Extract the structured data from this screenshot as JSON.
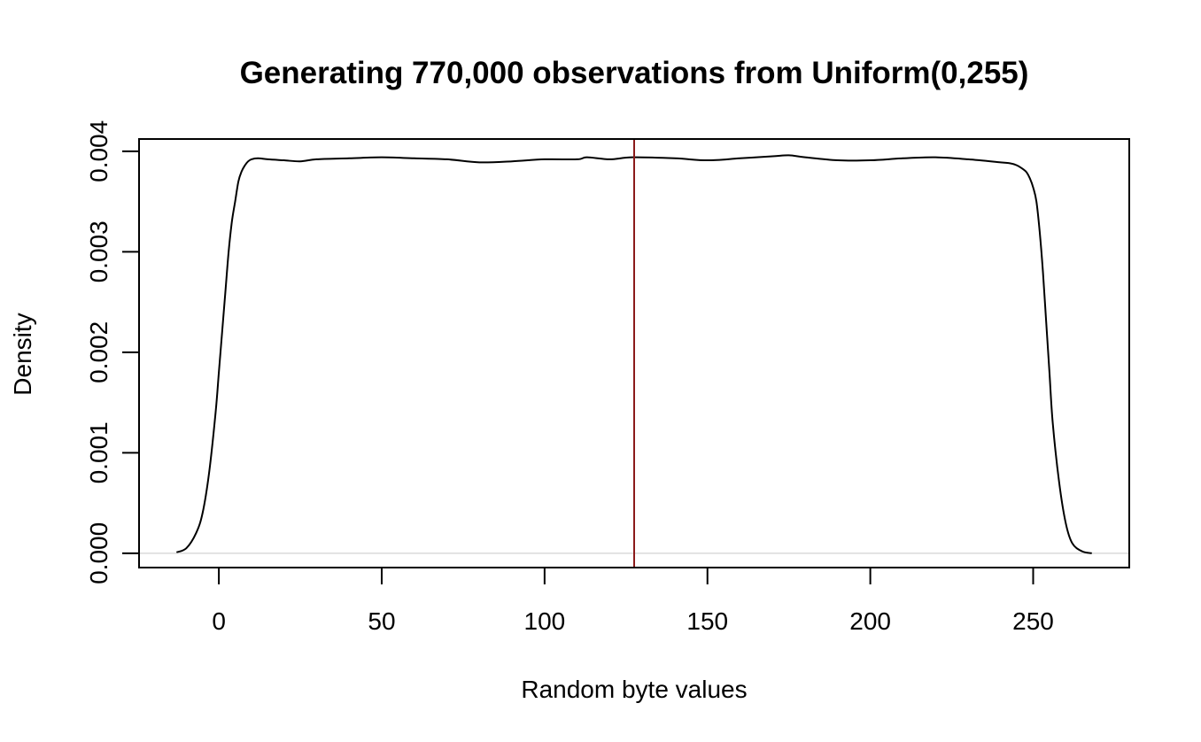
{
  "chart_data": {
    "type": "line",
    "title": "Generating 770,000 observations from Uniform(0,255)",
    "xlabel": "Random byte values",
    "ylabel": "Density",
    "xlim": [
      -24.5,
      279.5
    ],
    "ylim": [
      -0.000142,
      0.004122
    ],
    "x_ticks": [
      0,
      50,
      100,
      150,
      200,
      250
    ],
    "x_tick_labels": [
      "0",
      "50",
      "100",
      "150",
      "200",
      "250"
    ],
    "y_ticks": [
      0,
      0.001,
      0.002,
      0.003,
      0.004
    ],
    "y_tick_labels": [
      "0.000",
      "0.001",
      "0.002",
      "0.003",
      "0.004"
    ],
    "grid": false,
    "baseline": {
      "y": 0,
      "color": "#d3d3d3"
    },
    "vline": {
      "x": 127.5,
      "color": "#8b1a1a"
    },
    "series": [
      {
        "color": "#000000",
        "x": [
          -13,
          -10,
          -7,
          -5,
          -3,
          -1,
          0,
          1,
          2,
          3,
          4,
          5,
          6,
          7,
          8,
          9,
          10,
          12,
          15,
          20,
          25,
          30,
          40,
          50,
          60,
          70,
          80,
          90,
          100,
          110,
          113,
          120,
          127,
          140,
          150,
          160,
          170,
          175,
          180,
          190,
          200,
          210,
          220,
          230,
          240,
          243,
          245,
          247,
          248,
          249,
          250,
          251,
          252,
          253,
          254,
          255,
          256,
          258,
          260,
          262,
          265,
          268
        ],
        "y": [
          1e-05,
          5e-05,
          0.0002,
          0.0004,
          0.0008,
          0.0014,
          0.0018,
          0.0022,
          0.0026,
          0.003,
          0.0033,
          0.0035,
          0.0037,
          0.0038,
          0.00386,
          0.0039,
          0.00392,
          0.00393,
          0.00392,
          0.00391,
          0.0039,
          0.00392,
          0.00393,
          0.00394,
          0.00393,
          0.00392,
          0.00389,
          0.0039,
          0.00392,
          0.00392,
          0.00394,
          0.00392,
          0.00394,
          0.00393,
          0.00391,
          0.00393,
          0.00395,
          0.00396,
          0.00394,
          0.00391,
          0.00391,
          0.00393,
          0.00394,
          0.00392,
          0.00389,
          0.00388,
          0.00386,
          0.00382,
          0.00379,
          0.00373,
          0.00364,
          0.0035,
          0.0032,
          0.0028,
          0.0023,
          0.0018,
          0.0013,
          0.0007,
          0.0003,
          0.0001,
          2e-05,
          0.0
        ]
      }
    ]
  }
}
